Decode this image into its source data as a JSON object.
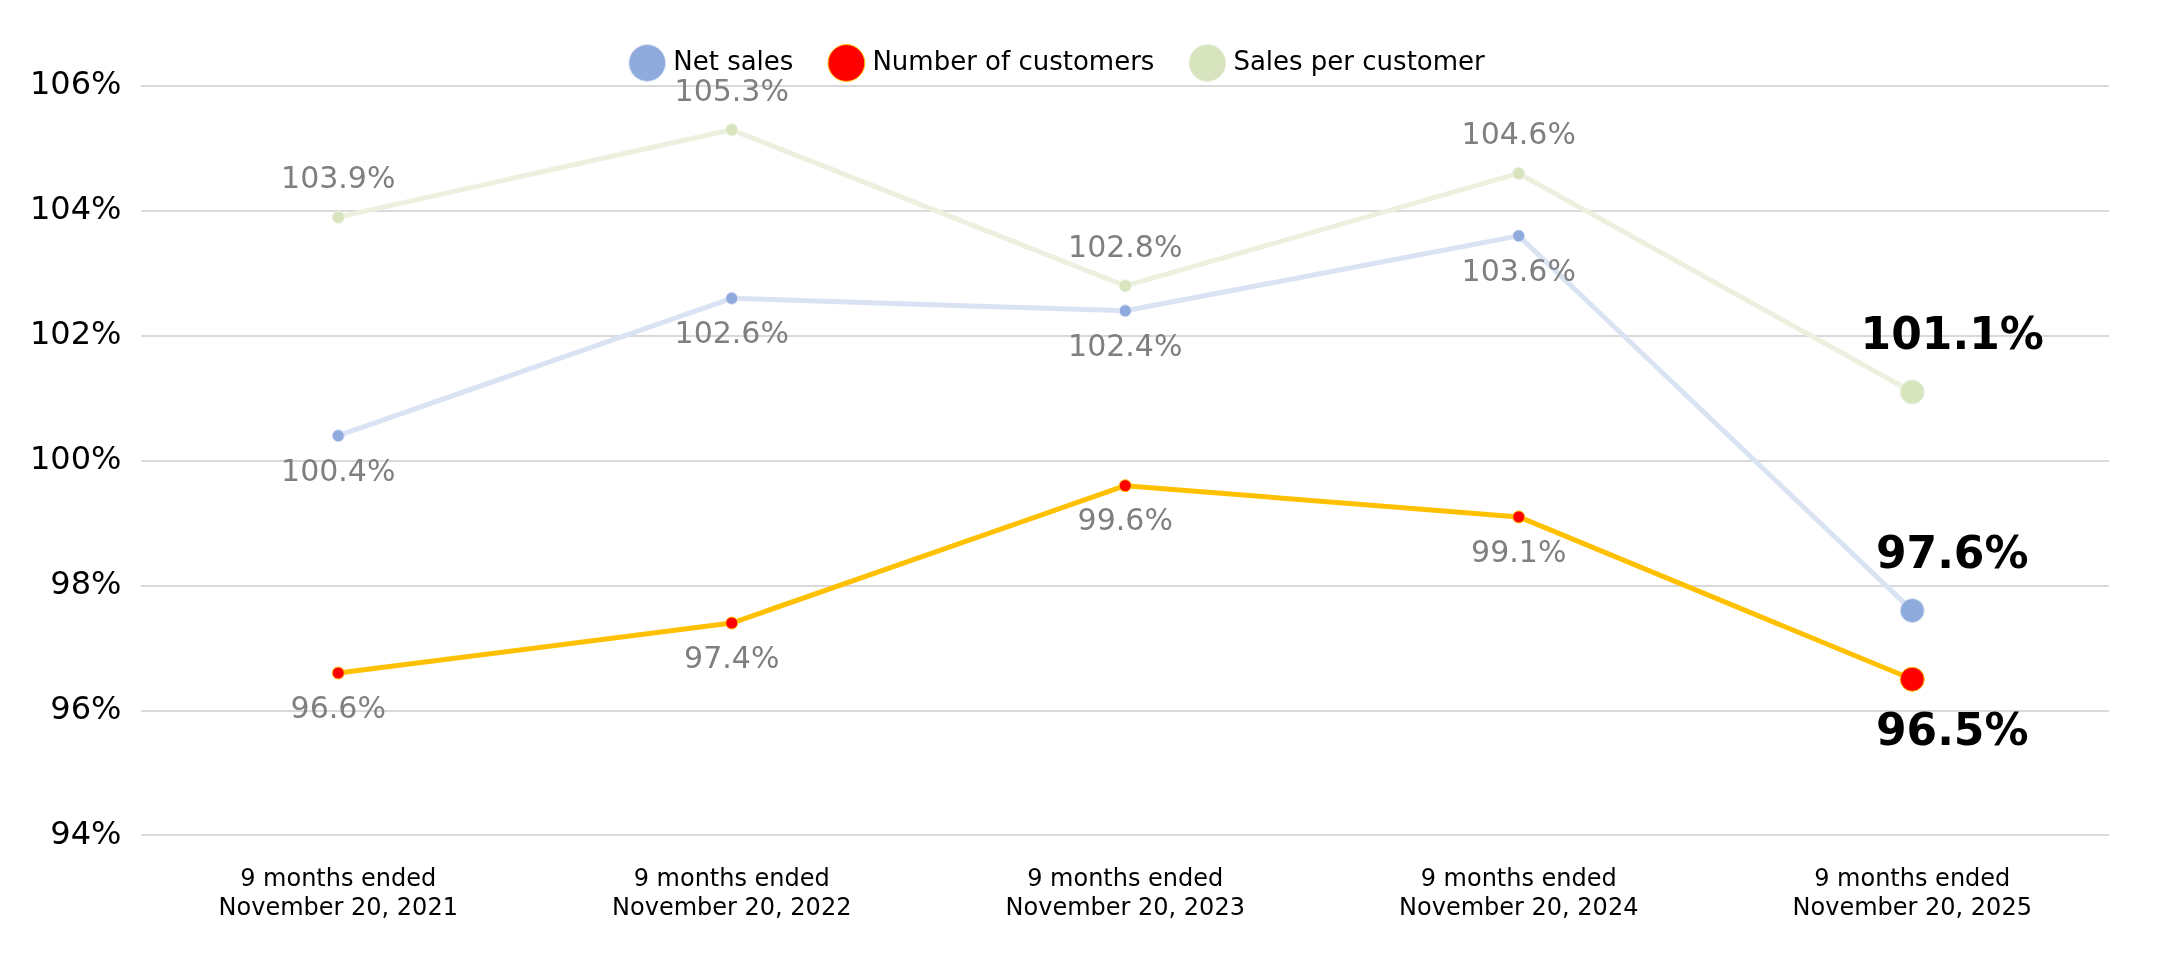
{
  "chart_data": {
    "type": "line",
    "categories": [
      "9 months ended November 20, 2021",
      "9 months ended November 20, 2022",
      "9 months ended November 20, 2023",
      "9 months ended November 20, 2024",
      "9 months ended November 20, 2025"
    ],
    "series": [
      {
        "name": "Net sales",
        "color": "#dae3f3",
        "colors": [
          "#8faadc",
          "#8faadc",
          "#8faadc",
          "#8faadc",
          "#8faadc"
        ],
        "values": [
          100.4,
          102.6,
          102.4,
          103.6,
          97.6
        ],
        "value_labels": [
          "100.4%",
          "102.6%",
          "102.4%",
          "103.6%",
          "97.6%"
        ]
      },
      {
        "name": "Number of customers",
        "color": "#ffc000",
        "colors": [
          "#ff0000",
          "#ff0000",
          "#ff0000",
          "#ff0000",
          "#ff0000"
        ],
        "values": [
          96.6,
          97.4,
          99.6,
          99.1,
          96.5
        ],
        "value_labels": [
          "96.6%",
          "97.4%",
          "99.6%",
          "99.1%",
          "96.5%"
        ]
      },
      {
        "name": "Sales per customer",
        "color": "#ebf1de",
        "colors": [
          "#d7e4bd",
          "#d7e4bd",
          "#d7e4bd",
          "#d7e4bd",
          "#d7e4bd"
        ],
        "values": [
          103.9,
          105.3,
          102.8,
          104.6,
          101.1
        ],
        "value_labels": [
          "103.9%",
          "105.3%",
          "102.8%",
          "104.6%",
          "101.1%"
        ]
      }
    ],
    "ylim": [
      94,
      106
    ],
    "yticks": [
      {
        "value": 94,
        "label": "94%"
      },
      {
        "value": 96,
        "label": "96%"
      },
      {
        "value": 98,
        "label": "98%"
      },
      {
        "value": 100,
        "label": "100%"
      },
      {
        "value": 102,
        "label": "102%"
      },
      {
        "value": 104,
        "label": "104%"
      },
      {
        "value": 106,
        "label": "106%"
      }
    ],
    "grid": "y",
    "legend": "top",
    "marker": "circle",
    "line_style": "solid"
  }
}
